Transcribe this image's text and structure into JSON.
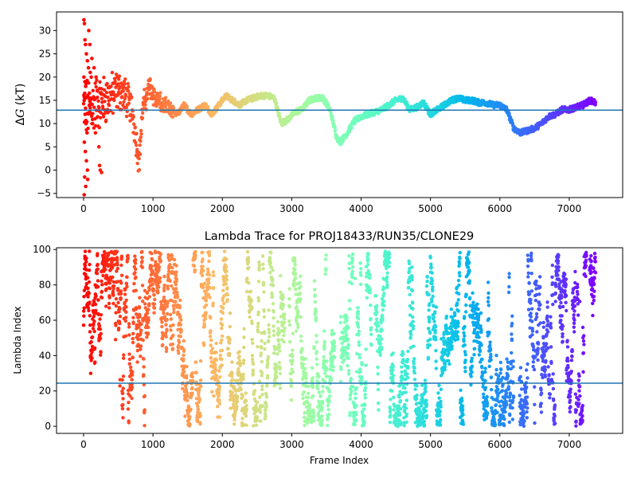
{
  "chart_data": [
    {
      "type": "scatter",
      "title": "",
      "xlabel": "",
      "ylabel": "ΔG (kT)",
      "ylabel_parts": {
        "symbol": "Δ",
        "var": "G",
        "unit": " (kT)"
      },
      "xlim": [
        -390,
        7770
      ],
      "ylim": [
        -5.9,
        34
      ],
      "xticks": [
        0,
        1000,
        2000,
        3000,
        4000,
        5000,
        6000,
        7000
      ],
      "yticks": [
        -5,
        0,
        5,
        10,
        15,
        20,
        25,
        30
      ],
      "hline": 12.9,
      "hline_color": "#1f77b4",
      "colormap": "rainbow",
      "grid": false,
      "frame_range": [
        0,
        7380
      ],
      "trend": [
        [
          0,
          13
        ],
        [
          150,
          14
        ],
        [
          300,
          15
        ],
        [
          400,
          16
        ],
        [
          500,
          17
        ],
        [
          600,
          16
        ],
        [
          700,
          13
        ],
        [
          780,
          4
        ],
        [
          800,
          2
        ],
        [
          850,
          13
        ],
        [
          950,
          18
        ],
        [
          1050,
          15
        ],
        [
          1150,
          14
        ],
        [
          1250,
          13
        ],
        [
          1350,
          12
        ],
        [
          1450,
          14
        ],
        [
          1550,
          12
        ],
        [
          1650,
          13
        ],
        [
          1750,
          14
        ],
        [
          1850,
          12
        ],
        [
          1950,
          14
        ],
        [
          2050,
          16
        ],
        [
          2150,
          15
        ],
        [
          2250,
          14
        ],
        [
          2350,
          15
        ],
        [
          2450,
          15.5
        ],
        [
          2550,
          16
        ],
        [
          2650,
          16
        ],
        [
          2750,
          15.5
        ],
        [
          2850,
          10
        ],
        [
          2950,
          11
        ],
        [
          3050,
          12.5
        ],
        [
          3150,
          13
        ],
        [
          3250,
          15
        ],
        [
          3350,
          15.5
        ],
        [
          3450,
          15.5
        ],
        [
          3550,
          13
        ],
        [
          3650,
          7
        ],
        [
          3700,
          6
        ],
        [
          3800,
          8
        ],
        [
          3900,
          10.5
        ],
        [
          4000,
          11.5
        ],
        [
          4100,
          12
        ],
        [
          4200,
          12.5
        ],
        [
          4300,
          13
        ],
        [
          4400,
          14
        ],
        [
          4500,
          15
        ],
        [
          4600,
          15.5
        ],
        [
          4700,
          13
        ],
        [
          4800,
          13.5
        ],
        [
          4900,
          14.5
        ],
        [
          5000,
          12
        ],
        [
          5100,
          13
        ],
        [
          5200,
          14
        ],
        [
          5300,
          15
        ],
        [
          5400,
          15.5
        ],
        [
          5500,
          15
        ],
        [
          5600,
          15
        ],
        [
          5700,
          14.5
        ],
        [
          5800,
          14.5
        ],
        [
          5900,
          14
        ],
        [
          6000,
          14
        ],
        [
          6100,
          13
        ],
        [
          6200,
          9
        ],
        [
          6300,
          8
        ],
        [
          6400,
          8.5
        ],
        [
          6500,
          9
        ],
        [
          6600,
          10
        ],
        [
          6700,
          11.5
        ],
        [
          6800,
          12
        ],
        [
          6900,
          13
        ],
        [
          7000,
          13
        ],
        [
          7100,
          13.5
        ],
        [
          7200,
          14
        ],
        [
          7300,
          15
        ],
        [
          7380,
          14.5
        ]
      ],
      "early_noise": [
        [
          5,
          32.3
        ],
        [
          12,
          31.5
        ],
        [
          20,
          28
        ],
        [
          28,
          27
        ],
        [
          40,
          25
        ],
        [
          55,
          23.5
        ],
        [
          70,
          22
        ],
        [
          95,
          21
        ],
        [
          110,
          20
        ],
        [
          5,
          20
        ],
        [
          18,
          19
        ],
        [
          30,
          18
        ],
        [
          8,
          15
        ],
        [
          22,
          12
        ],
        [
          35,
          10
        ],
        [
          50,
          8
        ],
        [
          10,
          6
        ],
        [
          25,
          4
        ],
        [
          40,
          2
        ],
        [
          55,
          0
        ],
        [
          15,
          -1.5
        ],
        [
          30,
          -3.5
        ],
        [
          8,
          -5.3
        ],
        [
          60,
          -2
        ],
        [
          75,
          30
        ],
        [
          90,
          27
        ],
        [
          120,
          24
        ],
        [
          150,
          22
        ],
        [
          180,
          20
        ],
        [
          200,
          17
        ],
        [
          220,
          5
        ],
        [
          240,
          0
        ],
        [
          260,
          -0.5
        ],
        [
          230,
          1
        ],
        [
          90,
          12.5
        ],
        [
          130,
          10
        ],
        [
          170,
          8
        ]
      ]
    },
    {
      "type": "scatter",
      "title": "Lambda Trace for PROJ18433/RUN35/CLONE29",
      "xlabel": "Frame Index",
      "ylabel": "Lambda Index",
      "xlim": [
        -390,
        7770
      ],
      "ylim": [
        -4,
        101
      ],
      "xticks": [
        0,
        1000,
        2000,
        3000,
        4000,
        5000,
        6000,
        7000
      ],
      "yticks": [
        0,
        20,
        40,
        60,
        80,
        100
      ],
      "hline": 24.4,
      "hline_color": "#1f77b4",
      "colormap": "rainbow",
      "grid": false,
      "frame_range": [
        0,
        7380
      ],
      "value_range": [
        0,
        99
      ],
      "gaps": [
        [
          2900,
          2960
        ],
        [
          3620,
          3700
        ],
        [
          4150,
          4200
        ],
        [
          6200,
          6280
        ],
        [
          7250,
          7290
        ]
      ]
    }
  ]
}
